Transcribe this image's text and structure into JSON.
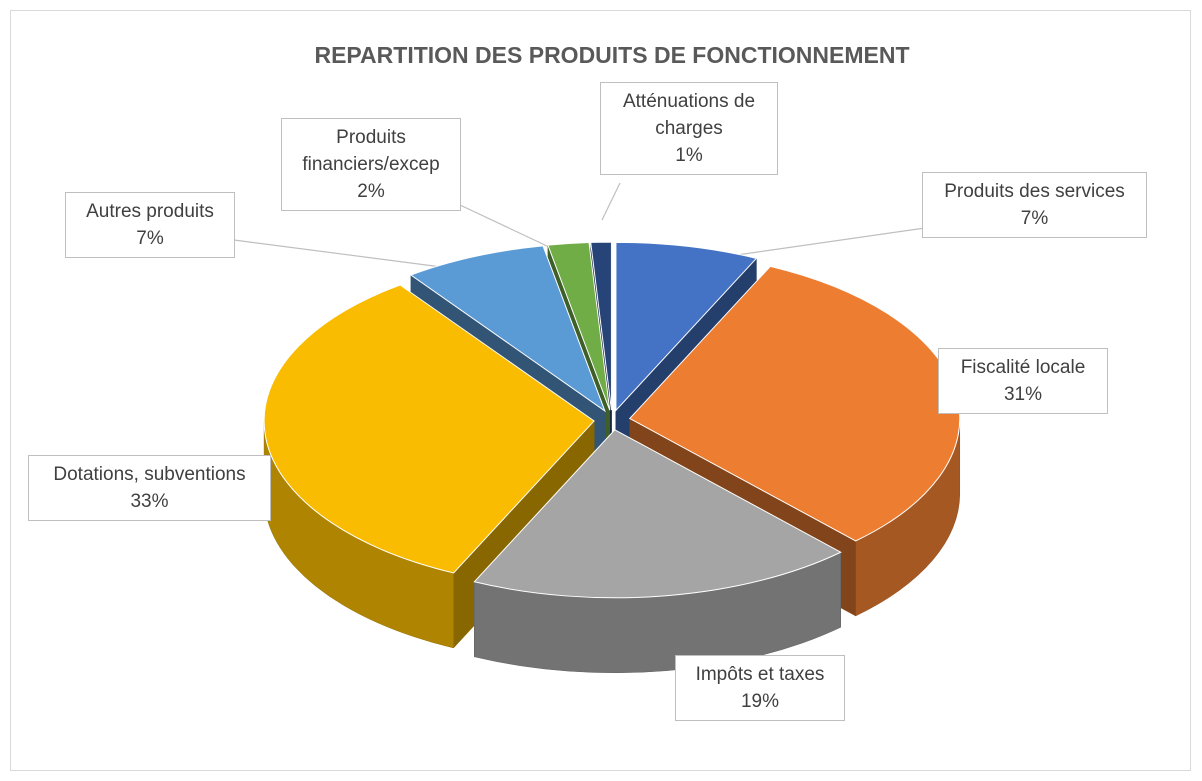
{
  "chart_data": {
    "type": "pie3d",
    "title": "REPARTITION DES PRODUITS DE FONCTIONNEMENT",
    "categories": [
      "Produits des services",
      "Fiscalité locale",
      "Impôts et taxes",
      "Dotations, subventions",
      "Autres produits",
      "Produits financiers/excep",
      "Atténuations de charges"
    ],
    "values": [
      7,
      31,
      19,
      33,
      7,
      2,
      1
    ],
    "value_labels": [
      "7%",
      "31%",
      "19%",
      "33%",
      "7%",
      "2%",
      "1%"
    ],
    "colors": [
      "#4472c4",
      "#ed7d31",
      "#a5a5a5",
      "#f9bc00",
      "#5b9bd5",
      "#70ad47",
      "#264478"
    ]
  }
}
